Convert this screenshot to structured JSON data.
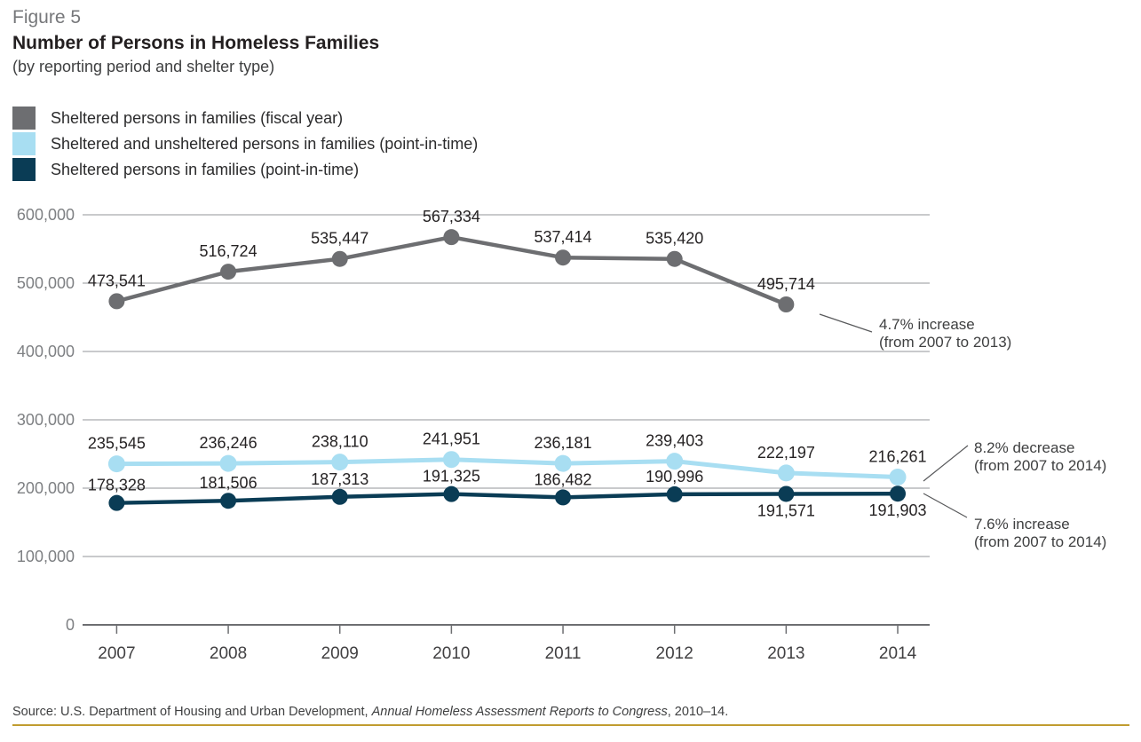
{
  "figure_label": "Figure 5",
  "title": "Number of Persons in Homeless Families",
  "subtitle": "(by reporting period and shelter type)",
  "legend": {
    "items": [
      {
        "label": "Sheltered persons in families (fiscal year)"
      },
      {
        "label": "Sheltered and unsheltered persons in families (point-in-time)"
      },
      {
        "label": "Sheltered persons in families (point-in-time)"
      }
    ]
  },
  "chart_data": {
    "type": "line",
    "x_labels": [
      "2007",
      "2008",
      "2009",
      "2010",
      "2011",
      "2012",
      "2013",
      "2014"
    ],
    "ylim": [
      0,
      600000
    ],
    "ytick_step": 100000,
    "ytick_labels": [
      "0",
      "100,000",
      "200,000",
      "300,000",
      "400,000",
      "500,000",
      "600,000"
    ],
    "grid": true,
    "legend_position": "top-left",
    "series": [
      {
        "name": "Sheltered persons in families (fiscal year)",
        "color": "#6D6E71",
        "values": [
          473541,
          516724,
          535447,
          567334,
          537414,
          535420,
          495714,
          null
        ],
        "labels": [
          "473,541",
          "516,724",
          "535,447",
          "567,334",
          "537,414",
          "535,420",
          "495,714",
          ""
        ]
      },
      {
        "name": "Sheltered and unsheltered persons in families (point-in-time)",
        "color": "#A8DEF2",
        "values": [
          235545,
          236246,
          238110,
          241951,
          236181,
          239403,
          222197,
          216261
        ],
        "labels": [
          "235,545",
          "236,246",
          "238,110",
          "241,951",
          "236,181",
          "239,403",
          "222,197",
          "216,261"
        ]
      },
      {
        "name": "Sheltered persons in families (point-in-time)",
        "color": "#0A3C55",
        "values": [
          178328,
          181506,
          187313,
          191325,
          186482,
          190996,
          191571,
          191903
        ],
        "labels": [
          "178,328",
          "181,506",
          "187,313",
          "191,325",
          "186,482",
          "190,996",
          "191,571",
          "191,903"
        ]
      }
    ],
    "annotations": [
      {
        "line1": "4.7% increase",
        "line2": "(from 2007 to 2013)"
      },
      {
        "line1": "8.2% decrease",
        "line2": "(from 2007 to 2014)"
      },
      {
        "line1": "7.6% increase",
        "line2": "(from 2007 to 2014)"
      }
    ]
  },
  "source": {
    "prefix": "Source: U.S. Department of Housing and Urban Development, ",
    "italic": "Annual Homeless Assessment Reports to Congress",
    "suffix": ", 2010–14."
  },
  "colors": {
    "series_fiscal_year": "#6D6E71",
    "series_pit_total": "#A8DEF2",
    "series_pit_sheltered": "#0A3C55",
    "grid_line": "#939598",
    "axis_line": "#6D6E71",
    "figure_label": "#76777A",
    "title_text": "#231F20",
    "accent_rule": "#C19C30"
  }
}
